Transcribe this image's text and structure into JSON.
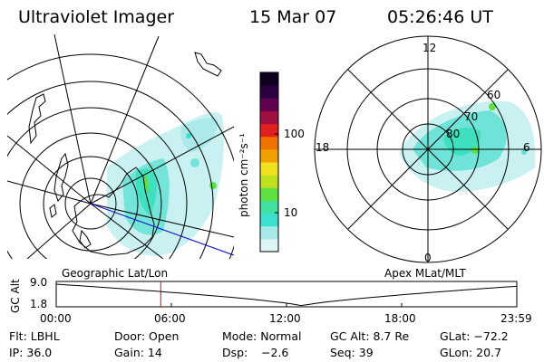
{
  "header": {
    "instrument": "Ultraviolet Imager",
    "date": "15 Mar 07",
    "time": "05:26:46 UT"
  },
  "colorbar": {
    "unit_label": "photon cm⁻²s⁻¹",
    "tick_100": "100",
    "tick_10": "10",
    "colors": [
      "#dff4f4",
      "#a8e8e8",
      "#3ee0d0",
      "#40e0a0",
      "#60e040",
      "#c0e020",
      "#f0e020",
      "#f0a000",
      "#f07000",
      "#e02020",
      "#a01040",
      "#600050",
      "#2a0040",
      "#100020"
    ]
  },
  "left_map": {
    "label": "Geographic Lat/Lon"
  },
  "right_map": {
    "label": "Apex MLat/MLT",
    "labels_mlt": {
      "top": "12",
      "left": "18",
      "right": "6",
      "bottom": "0"
    },
    "labels_mlat": {
      "l60": "60",
      "l70": "70",
      "l80": "80"
    }
  },
  "timeline": {
    "y_label": "GC Alt",
    "y_ticks": [
      "9.0",
      "1.8"
    ],
    "x_ticks": [
      "00:00",
      "06:00",
      "12:00",
      "18:00",
      "23:59"
    ],
    "current_time_hours": 5.446,
    "marker_color": "#e00000"
  },
  "status": {
    "filter": "Flt: LBHL",
    "door": "Door: Open",
    "mode": "Mode: Normal",
    "gc_alt": "GC Alt: 8.7 Re",
    "glat": "GLat: −72.2",
    "ip": "IP: 36.0",
    "gain": "Gain: 14",
    "dsp_label": "Dsp:",
    "dsp_value": "−2.6",
    "seq": "Seq: 39",
    "glon": "GLon: 20.7"
  }
}
